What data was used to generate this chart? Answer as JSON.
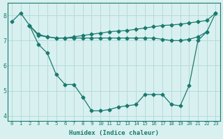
{
  "line1_x": [
    0,
    1,
    2,
    3,
    4,
    5,
    6,
    7,
    8,
    9,
    10,
    11,
    12,
    13,
    14,
    15,
    16,
    17,
    18,
    19,
    20,
    21,
    22,
    23
  ],
  "line1_y": [
    7.75,
    8.1,
    7.6,
    7.25,
    7.15,
    7.1,
    7.1,
    7.15,
    7.2,
    7.25,
    7.3,
    7.35,
    7.38,
    7.4,
    7.45,
    7.5,
    7.55,
    7.6,
    7.62,
    7.65,
    7.7,
    7.75,
    7.8,
    8.1
  ],
  "line2_x": [
    2,
    3,
    4,
    5,
    6,
    7,
    8,
    9,
    10,
    11,
    12,
    13,
    14,
    15,
    16,
    17,
    18,
    19,
    20,
    21,
    22
  ],
  "line2_y": [
    7.6,
    7.2,
    7.15,
    7.1,
    7.1,
    7.1,
    7.1,
    7.1,
    7.1,
    7.1,
    7.1,
    7.1,
    7.1,
    7.1,
    7.1,
    7.05,
    7.0,
    7.0,
    7.05,
    7.15,
    7.35
  ],
  "line3_x": [
    2,
    3,
    4,
    5,
    6,
    7,
    8,
    9,
    10,
    11,
    12,
    13,
    14,
    15,
    16,
    17,
    18,
    19,
    20,
    21,
    22,
    23
  ],
  "line3_y": [
    7.6,
    6.85,
    6.5,
    5.65,
    5.25,
    5.25,
    4.75,
    4.2,
    4.2,
    4.25,
    4.35,
    4.4,
    4.45,
    4.85,
    4.85,
    4.85,
    4.45,
    4.4,
    5.2,
    7.0,
    7.35,
    8.1
  ],
  "color": "#1a7a6e",
  "bg_color": "#d8f0f0",
  "grid_color": "#b8dada",
  "xlabel": "Humidex (Indice chaleur)",
  "ylim": [
    3.8,
    8.5
  ],
  "xlim": [
    -0.5,
    23.5
  ],
  "yticks": [
    4,
    5,
    6,
    7,
    8
  ],
  "xticks": [
    0,
    1,
    2,
    3,
    4,
    5,
    6,
    7,
    8,
    9,
    10,
    11,
    12,
    13,
    14,
    15,
    16,
    17,
    18,
    19,
    20,
    21,
    22,
    23
  ]
}
